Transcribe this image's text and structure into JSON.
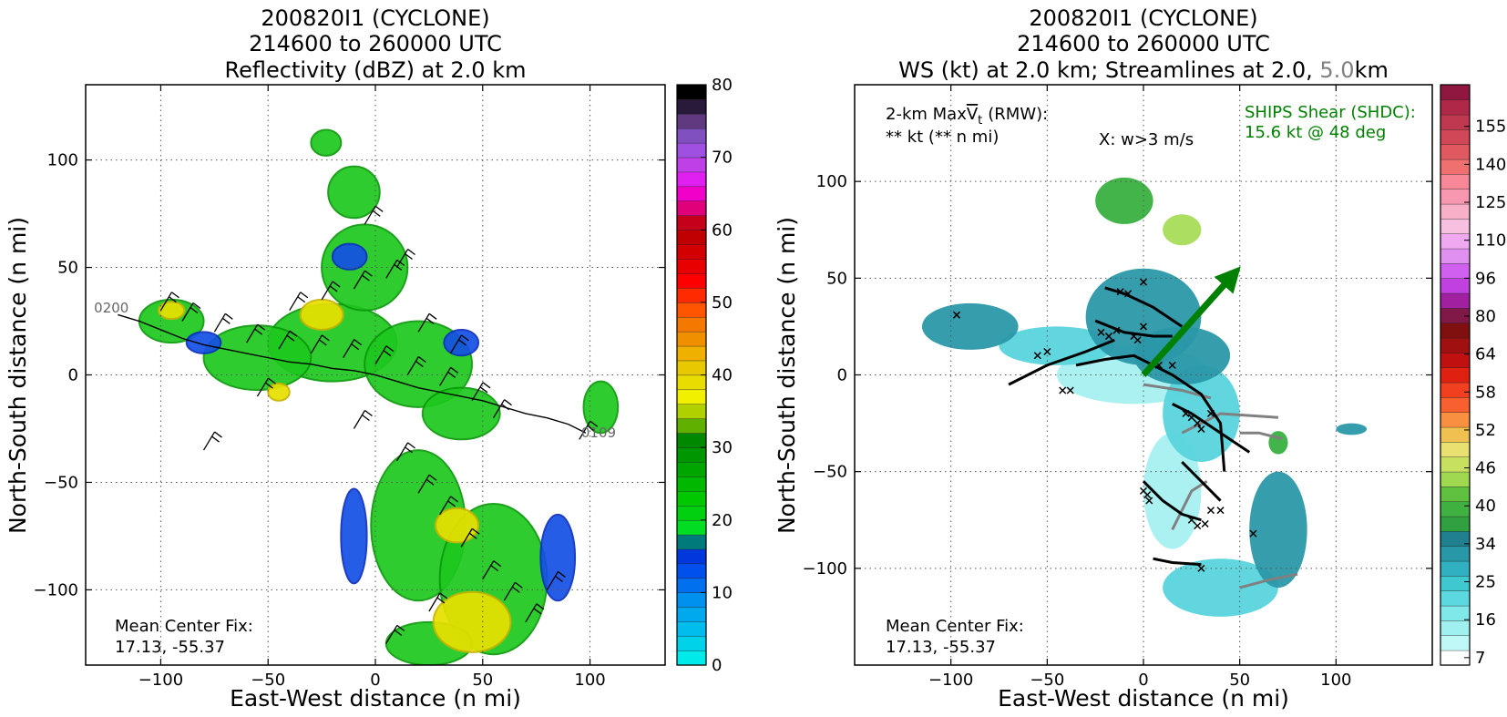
{
  "chart_data": [
    {
      "type": "heatmap",
      "title_line1": "200820I1 (CYCLONE)",
      "title_line2": "214600 to 260000 UTC",
      "title_line3": "Reflectivity (dBZ) at 2.0 km",
      "xlabel": "East-West distance (n mi)",
      "ylabel": "North-South distance (n mi)",
      "xlim": [
        -135,
        135
      ],
      "ylim": [
        -135,
        135
      ],
      "xticks": [
        -100,
        -50,
        0,
        50,
        100
      ],
      "yticks": [
        -100,
        -50,
        0,
        50,
        100
      ],
      "xtick_labels": [
        "−100",
        "−50",
        "0",
        "50",
        "100"
      ],
      "ytick_labels": [
        "−100",
        "−50",
        "0",
        "50",
        "100"
      ],
      "grid": true,
      "annotation_line1": "Mean Center Fix:",
      "annotation_line2": "17.13, -55.37",
      "track_labels": [
        {
          "text": "0200",
          "x": -123,
          "y": 29
        },
        {
          "text": "0109",
          "x": 104,
          "y": -29
        }
      ],
      "track": [
        [
          -120,
          28
        ],
        [
          -110,
          25
        ],
        [
          -100,
          21
        ],
        [
          -90,
          17
        ],
        [
          -80,
          14
        ],
        [
          -70,
          12
        ],
        [
          -60,
          10
        ],
        [
          -50,
          8
        ],
        [
          -40,
          6
        ],
        [
          -30,
          5
        ],
        [
          -20,
          3
        ],
        [
          -10,
          2
        ],
        [
          0,
          0
        ],
        [
          10,
          -3
        ],
        [
          20,
          -6
        ],
        [
          30,
          -8
        ],
        [
          40,
          -10
        ],
        [
          50,
          -12
        ],
        [
          60,
          -15
        ],
        [
          70,
          -18
        ],
        [
          80,
          -20
        ],
        [
          90,
          -23
        ],
        [
          98,
          -27
        ]
      ],
      "colorbar": {
        "tick_labels": [
          "0",
          "10",
          "20",
          "30",
          "40",
          "50",
          "60",
          "70",
          "80"
        ],
        "range": [
          0,
          80
        ],
        "colors": [
          "#00eaea",
          "#00d2ea",
          "#00bdee",
          "#00a8ee",
          "#0090ee",
          "#0070ee",
          "#0050ee",
          "#0038dd",
          "#007a7a",
          "#00dd22",
          "#00d010",
          "#00c800",
          "#00b800",
          "#00a600",
          "#009600",
          "#008800",
          "#60b000",
          "#b0d000",
          "#f0f000",
          "#e8dc00",
          "#e8c800",
          "#f0b000",
          "#f09000",
          "#f57800",
          "#ff5500",
          "#ff2a00",
          "#ff0000",
          "#e80000",
          "#d20000",
          "#c00000",
          "#c4001a",
          "#e0007a",
          "#f000c8",
          "#e020f0",
          "#c040e8",
          "#a050e0",
          "#8050c0",
          "#603a80",
          "#2a1a3a",
          "#000000"
        ]
      },
      "echo_regions": [
        {
          "cx": -20,
          "cy": 15,
          "rx": 30,
          "ry": 18,
          "level": "green"
        },
        {
          "cx": -95,
          "cy": 25,
          "rx": 15,
          "ry": 10,
          "level": "green"
        },
        {
          "cx": -55,
          "cy": 8,
          "rx": 25,
          "ry": 15,
          "level": "green"
        },
        {
          "cx": 20,
          "cy": 5,
          "rx": 25,
          "ry": 20,
          "level": "green"
        },
        {
          "cx": 40,
          "cy": -18,
          "rx": 18,
          "ry": 12,
          "level": "green"
        },
        {
          "cx": -5,
          "cy": 50,
          "rx": 20,
          "ry": 20,
          "level": "green"
        },
        {
          "cx": -10,
          "cy": 85,
          "rx": 12,
          "ry": 12,
          "level": "green"
        },
        {
          "cx": 20,
          "cy": -70,
          "rx": 22,
          "ry": 35,
          "level": "green"
        },
        {
          "cx": 55,
          "cy": -95,
          "rx": 25,
          "ry": 35,
          "level": "green"
        },
        {
          "cx": 25,
          "cy": -125,
          "rx": 20,
          "ry": 10,
          "level": "green"
        },
        {
          "cx": 105,
          "cy": -15,
          "rx": 8,
          "ry": 12,
          "level": "green"
        },
        {
          "cx": -23,
          "cy": 108,
          "rx": 7,
          "ry": 6,
          "level": "green"
        },
        {
          "cx": -80,
          "cy": 15,
          "rx": 8,
          "ry": 5,
          "level": "blue"
        },
        {
          "cx": -12,
          "cy": 55,
          "rx": 8,
          "ry": 6,
          "level": "blue"
        },
        {
          "cx": -10,
          "cy": -75,
          "rx": 6,
          "ry": 22,
          "level": "blue"
        },
        {
          "cx": 85,
          "cy": -85,
          "rx": 8,
          "ry": 20,
          "level": "blue"
        },
        {
          "cx": 40,
          "cy": 15,
          "rx": 8,
          "ry": 6,
          "level": "blue"
        },
        {
          "cx": -25,
          "cy": 28,
          "rx": 10,
          "ry": 7,
          "level": "yellow"
        },
        {
          "cx": 45,
          "cy": -115,
          "rx": 18,
          "ry": 14,
          "level": "yellow"
        },
        {
          "cx": 38,
          "cy": -70,
          "rx": 10,
          "ry": 8,
          "level": "yellow"
        },
        {
          "cx": -95,
          "cy": 30,
          "rx": 6,
          "ry": 4,
          "level": "yellow"
        },
        {
          "cx": -45,
          "cy": -8,
          "rx": 5,
          "ry": 4,
          "level": "yellow"
        }
      ],
      "barbs": [
        [
          -100,
          30
        ],
        [
          -90,
          25
        ],
        [
          -75,
          20
        ],
        [
          -60,
          15
        ],
        [
          -45,
          12
        ],
        [
          -30,
          10
        ],
        [
          -15,
          8
        ],
        [
          0,
          5
        ],
        [
          15,
          0
        ],
        [
          30,
          -5
        ],
        [
          45,
          -12
        ],
        [
          55,
          -20
        ],
        [
          -40,
          30
        ],
        [
          -25,
          35
        ],
        [
          -10,
          40
        ],
        [
          5,
          45
        ],
        [
          -5,
          70
        ],
        [
          10,
          50
        ],
        [
          20,
          20
        ],
        [
          35,
          10
        ],
        [
          10,
          -40
        ],
        [
          20,
          -55
        ],
        [
          30,
          -65
        ],
        [
          40,
          -80
        ],
        [
          50,
          -95
        ],
        [
          60,
          -105
        ],
        [
          70,
          -115
        ],
        [
          80,
          -100
        ],
        [
          25,
          -110
        ],
        [
          5,
          -125
        ],
        [
          -10,
          -25
        ],
        [
          -55,
          -10
        ],
        [
          -80,
          -35
        ],
        [
          95,
          -30
        ]
      ]
    },
    {
      "type": "heatmap",
      "title_line1": "200820I1 (CYCLONE)",
      "title_line2": "214600 to 260000 UTC",
      "title_line3_a": "WS (kt) at 2.0 km; Streamlines at 2.0,",
      "title_line3_b": "5.0",
      "title_line3_c": "km",
      "xlabel": "East-West distance (n mi)",
      "ylabel": "North-South distance (n mi)",
      "xlim": [
        -150,
        150
      ],
      "ylim": [
        -150,
        150
      ],
      "xticks": [
        -100,
        -50,
        0,
        50,
        100
      ],
      "yticks": [
        -100,
        -50,
        0,
        50,
        100
      ],
      "xtick_labels": [
        "−100",
        "−50",
        "0",
        "50",
        "100"
      ],
      "ytick_labels": [
        "−100",
        "−50",
        "0",
        "50",
        "100"
      ],
      "grid": true,
      "maxvt_line1_prefix": "2-km Max",
      "maxvt_symbol": "V",
      "maxvt_subscript": "t",
      "maxvt_line1_suffix": "(RMW):",
      "maxvt_line2": "** kt (** n mi)",
      "updraft_label": "X: w>3 m/s",
      "shear_label_line1": "SHIPS Shear (SHDC):",
      "shear_label_line2": "15.6 kt @ 48 deg",
      "shear_vector": {
        "speed_kt": 15.6,
        "direction_deg": 48
      },
      "annotation_line1": "Mean Center Fix:",
      "annotation_line2": "17.13, -55.37",
      "colorbar": {
        "tick_labels": [
          "7",
          "16",
          "25",
          "34",
          "40",
          "46",
          "52",
          "58",
          "64",
          "80",
          "96",
          "110",
          "125",
          "140",
          "155"
        ],
        "colors": [
          "#ffffff",
          "#c0f8f8",
          "#a0f0f0",
          "#80e8e8",
          "#5cd8e0",
          "#40c8d0",
          "#30b0c0",
          "#2898a8",
          "#208090",
          "#30a040",
          "#40b040",
          "#60c040",
          "#a0d850",
          "#c8e060",
          "#e8e070",
          "#f0c050",
          "#f89040",
          "#f86030",
          "#f04020",
          "#e02010",
          "#c01010",
          "#a01010",
          "#801010",
          "#801848",
          "#a020a0",
          "#c040e0",
          "#d060f0",
          "#e090f0",
          "#f0a8f0",
          "#f8c0e0",
          "#f8b0c8",
          "#f898b0",
          "#f88898",
          "#f07070",
          "#e05860",
          "#d04858",
          "#c03850",
          "#b02848",
          "#901840"
        ]
      },
      "ws_regions": [
        {
          "cx": -90,
          "cy": 25,
          "rx": 25,
          "ry": 12,
          "level": "teal"
        },
        {
          "cx": -45,
          "cy": 15,
          "rx": 30,
          "ry": 10,
          "level": "cyan"
        },
        {
          "cx": 0,
          "cy": 30,
          "rx": 30,
          "ry": 25,
          "level": "teal"
        },
        {
          "cx": 20,
          "cy": 10,
          "rx": 25,
          "ry": 15,
          "level": "teal"
        },
        {
          "cx": -5,
          "cy": 0,
          "rx": 40,
          "ry": 15,
          "level": "lightcyan"
        },
        {
          "cx": 30,
          "cy": -20,
          "rx": 20,
          "ry": 25,
          "level": "cyan"
        },
        {
          "cx": 15,
          "cy": -60,
          "rx": 15,
          "ry": 30,
          "level": "lightcyan"
        },
        {
          "cx": 40,
          "cy": -110,
          "rx": 30,
          "ry": 15,
          "level": "cyan"
        },
        {
          "cx": 70,
          "cy": -80,
          "rx": 15,
          "ry": 30,
          "level": "teal"
        },
        {
          "cx": -10,
          "cy": 90,
          "rx": 15,
          "ry": 12,
          "level": "green"
        },
        {
          "cx": 20,
          "cy": 75,
          "rx": 10,
          "ry": 8,
          "level": "lightgreen"
        },
        {
          "cx": 108,
          "cy": -28,
          "rx": 8,
          "ry": 3,
          "level": "teal"
        },
        {
          "cx": 70,
          "cy": -35,
          "rx": 5,
          "ry": 6,
          "level": "green"
        }
      ],
      "streamlines_black": [
        [
          [
            -70,
            -5
          ],
          [
            -50,
            5
          ],
          [
            -30,
            12
          ],
          [
            -15,
            18
          ]
        ],
        [
          [
            -35,
            5
          ],
          [
            -20,
            8
          ],
          [
            -5,
            10
          ],
          [
            15,
            0
          ],
          [
            30,
            -10
          ],
          [
            40,
            -25
          ],
          [
            42,
            -50
          ]
        ],
        [
          [
            -25,
            28
          ],
          [
            -10,
            22
          ],
          [
            5,
            20
          ],
          [
            15,
            20
          ]
        ],
        [
          [
            -20,
            45
          ],
          [
            -10,
            42
          ],
          [
            5,
            35
          ],
          [
            20,
            25
          ]
        ],
        [
          [
            0,
            -55
          ],
          [
            10,
            -65
          ],
          [
            20,
            -72
          ],
          [
            30,
            -75
          ]
        ],
        [
          [
            5,
            -95
          ],
          [
            15,
            -97
          ],
          [
            30,
            -98
          ]
        ],
        [
          [
            15,
            -15
          ],
          [
            25,
            -20
          ],
          [
            40,
            -30
          ],
          [
            55,
            -40
          ]
        ],
        [
          [
            20,
            -45
          ],
          [
            30,
            -55
          ],
          [
            40,
            -65
          ]
        ]
      ],
      "streamlines_gray": [
        [
          [
            0,
            -5
          ],
          [
            20,
            -8
          ],
          [
            35,
            -12
          ]
        ],
        [
          [
            20,
            -30
          ],
          [
            40,
            -20
          ],
          [
            70,
            -22
          ]
        ],
        [
          [
            50,
            -30
          ],
          [
            60,
            -30
          ],
          [
            72,
            -33
          ]
        ],
        [
          [
            15,
            -80
          ],
          [
            25,
            -60
          ],
          [
            33,
            -55
          ]
        ],
        [
          [
            50,
            -110
          ],
          [
            65,
            -106
          ],
          [
            80,
            -103
          ]
        ]
      ],
      "updraft_markers": [
        [
          -97,
          31
        ],
        [
          -55,
          10
        ],
        [
          -50,
          12
        ],
        [
          -42,
          -8
        ],
        [
          -38,
          -8
        ],
        [
          -22,
          22
        ],
        [
          -18,
          20
        ],
        [
          -14,
          23
        ],
        [
          -12,
          43
        ],
        [
          -8,
          42
        ],
        [
          -5,
          20
        ],
        [
          -3,
          18
        ],
        [
          0,
          25
        ],
        [
          0,
          48
        ],
        [
          8,
          5
        ],
        [
          15,
          5
        ],
        [
          22,
          -20
        ],
        [
          25,
          -22
        ],
        [
          28,
          -25
        ],
        [
          30,
          -28
        ],
        [
          35,
          -20
        ],
        [
          0,
          -60
        ],
        [
          2,
          -62
        ],
        [
          3,
          -65
        ],
        [
          25,
          -75
        ],
        [
          28,
          -78
        ],
        [
          32,
          -77
        ],
        [
          35,
          -70
        ],
        [
          40,
          -70
        ],
        [
          30,
          -100
        ],
        [
          57,
          -82
        ]
      ]
    }
  ]
}
